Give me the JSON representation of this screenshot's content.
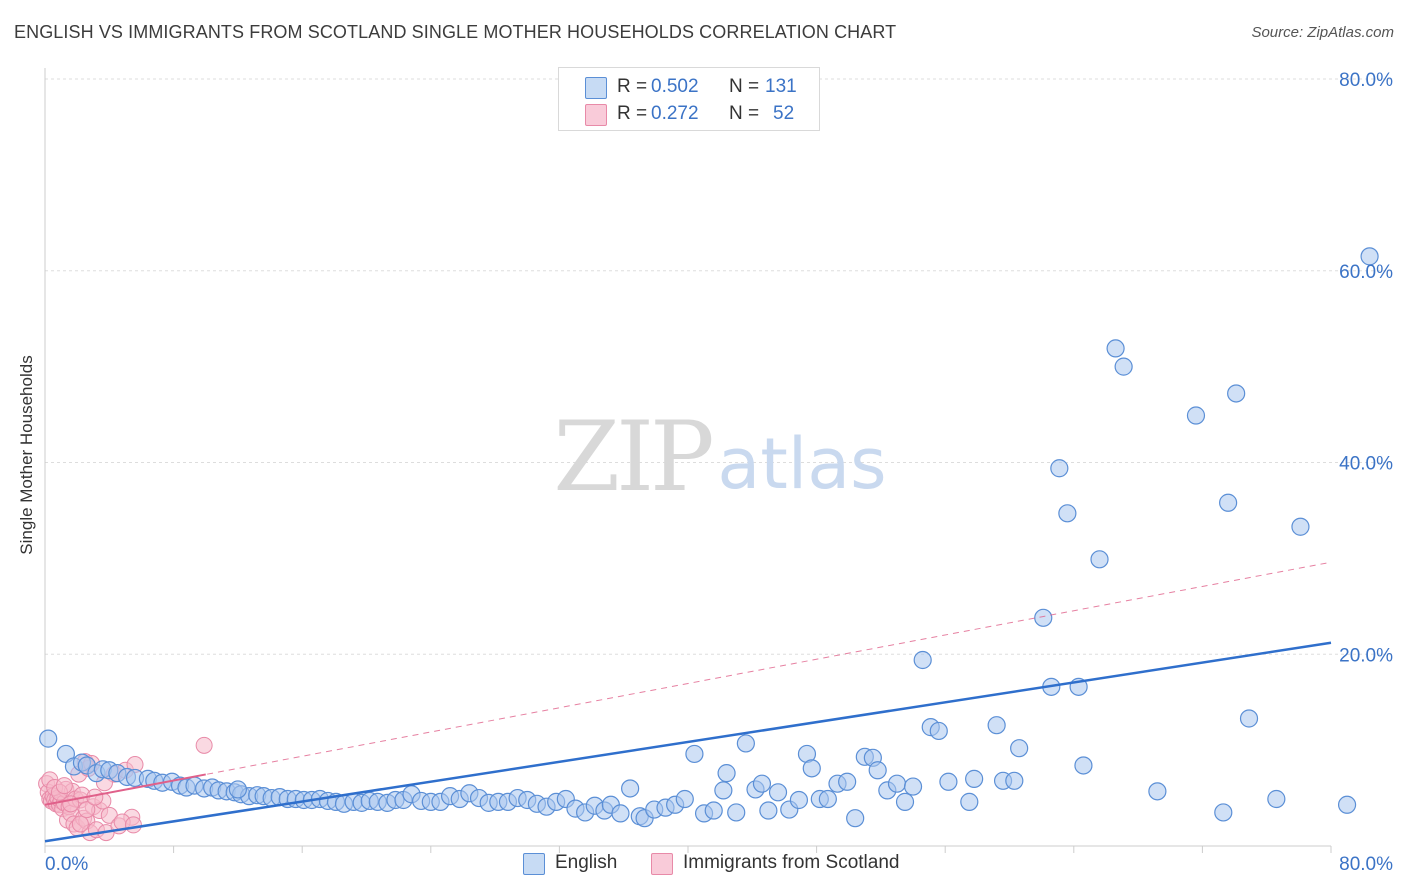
{
  "title": "ENGLISH VS IMMIGRANTS FROM SCOTLAND SINGLE MOTHER HOUSEHOLDS CORRELATION CHART",
  "source": "Source: ZipAtlas.com",
  "watermark": {
    "zip": "ZIP",
    "atlas": "atlas"
  },
  "legend_stats": [
    {
      "r_label": "R =",
      "r_value": "0.502",
      "n_label": "N =",
      "n_value": "131"
    },
    {
      "r_label": "R =",
      "r_value": "0.272",
      "n_label": "N =",
      "n_value": "52"
    }
  ],
  "colors": {
    "english_fill": "#a9c7ee",
    "english_stroke": "#5b8fd6",
    "english_line": "#2f6fcc",
    "scot_fill": "#f6b9cb",
    "scot_stroke": "#e88aa8",
    "scot_line": "#e0608a",
    "grid": "#dddddd",
    "tick_label": "#3b73c6"
  },
  "chart_data": {
    "type": "scatter",
    "title": "ENGLISH VS IMMIGRANTS FROM SCOTLAND SINGLE MOTHER HOUSEHOLDS CORRELATION CHART",
    "xlabel": "",
    "ylabel": "Single Mother Households",
    "xlim": [
      0,
      80
    ],
    "ylim": [
      0,
      80
    ],
    "x_tick_labels": [
      "0.0%",
      "80.0%"
    ],
    "y_ticks": [
      20,
      40,
      60,
      80
    ],
    "y_tick_labels": [
      "20.0%",
      "40.0%",
      "60.0%",
      "80.0%"
    ],
    "grid": true,
    "series": [
      {
        "name": "English",
        "R": 0.502,
        "N": 131,
        "trendline": {
          "x": [
            0,
            80
          ],
          "y": [
            0.5,
            21.2
          ],
          "style": "solid"
        },
        "points": [
          [
            0.2,
            11.2
          ],
          [
            1.3,
            9.6
          ],
          [
            1.8,
            8.3
          ],
          [
            2.3,
            8.7
          ],
          [
            2.6,
            8.4
          ],
          [
            3.2,
            7.6
          ],
          [
            3.6,
            8.0
          ],
          [
            4.0,
            7.9
          ],
          [
            4.5,
            7.6
          ],
          [
            5.1,
            7.2
          ],
          [
            5.6,
            7.1
          ],
          [
            6.4,
            7.0
          ],
          [
            6.8,
            6.8
          ],
          [
            7.3,
            6.6
          ],
          [
            7.9,
            6.7
          ],
          [
            8.4,
            6.3
          ],
          [
            8.8,
            6.1
          ],
          [
            9.3,
            6.3
          ],
          [
            9.9,
            6.0
          ],
          [
            10.4,
            6.1
          ],
          [
            10.8,
            5.8
          ],
          [
            11.3,
            5.7
          ],
          [
            11.8,
            5.6
          ],
          [
            12.2,
            5.4
          ],
          [
            12.7,
            5.2
          ],
          [
            13.2,
            5.3
          ],
          [
            13.6,
            5.2
          ],
          [
            14.1,
            5.0
          ],
          [
            14.6,
            5.1
          ],
          [
            15.1,
            4.9
          ],
          [
            15.6,
            4.9
          ],
          [
            16.1,
            4.8
          ],
          [
            16.6,
            4.8
          ],
          [
            17.1,
            4.9
          ],
          [
            17.6,
            4.7
          ],
          [
            18.1,
            4.6
          ],
          [
            18.6,
            4.4
          ],
          [
            19.2,
            4.6
          ],
          [
            19.7,
            4.5
          ],
          [
            20.2,
            4.7
          ],
          [
            20.7,
            4.6
          ],
          [
            21.3,
            4.5
          ],
          [
            21.8,
            4.8
          ],
          [
            22.3,
            4.8
          ],
          [
            22.8,
            5.4
          ],
          [
            23.4,
            4.7
          ],
          [
            24.0,
            4.6
          ],
          [
            24.6,
            4.6
          ],
          [
            25.2,
            5.2
          ],
          [
            25.8,
            4.9
          ],
          [
            26.4,
            5.5
          ],
          [
            27.0,
            5.0
          ],
          [
            27.6,
            4.5
          ],
          [
            28.2,
            4.6
          ],
          [
            28.8,
            4.6
          ],
          [
            29.4,
            5.0
          ],
          [
            30.0,
            4.8
          ],
          [
            30.6,
            4.4
          ],
          [
            31.2,
            4.1
          ],
          [
            31.8,
            4.6
          ],
          [
            32.4,
            4.9
          ],
          [
            33.0,
            3.9
          ],
          [
            33.6,
            3.5
          ],
          [
            34.2,
            4.2
          ],
          [
            34.8,
            3.7
          ],
          [
            35.2,
            4.3
          ],
          [
            35.8,
            3.4
          ],
          [
            36.4,
            6.0
          ],
          [
            37.0,
            3.1
          ],
          [
            37.3,
            2.9
          ],
          [
            37.9,
            3.8
          ],
          [
            38.6,
            4.0
          ],
          [
            39.2,
            4.3
          ],
          [
            39.8,
            4.9
          ],
          [
            40.4,
            9.6
          ],
          [
            41.0,
            3.4
          ],
          [
            41.6,
            3.7
          ],
          [
            42.2,
            5.8
          ],
          [
            42.4,
            7.6
          ],
          [
            43.0,
            3.5
          ],
          [
            43.6,
            10.7
          ],
          [
            44.2,
            5.9
          ],
          [
            44.6,
            6.5
          ],
          [
            45.0,
            3.7
          ],
          [
            45.6,
            5.6
          ],
          [
            46.3,
            3.8
          ],
          [
            46.9,
            4.8
          ],
          [
            47.4,
            9.6
          ],
          [
            47.7,
            8.1
          ],
          [
            48.2,
            4.9
          ],
          [
            48.7,
            4.9
          ],
          [
            49.3,
            6.5
          ],
          [
            49.9,
            6.7
          ],
          [
            50.4,
            2.9
          ],
          [
            51.0,
            9.3
          ],
          [
            51.5,
            9.2
          ],
          [
            51.8,
            7.9
          ],
          [
            52.4,
            5.8
          ],
          [
            53.0,
            6.5
          ],
          [
            53.5,
            4.6
          ],
          [
            54.0,
            6.2
          ],
          [
            54.6,
            19.4
          ],
          [
            55.1,
            12.4
          ],
          [
            55.6,
            12.0
          ],
          [
            56.2,
            6.7
          ],
          [
            57.5,
            4.6
          ],
          [
            57.8,
            7.0
          ],
          [
            59.2,
            12.6
          ],
          [
            59.6,
            6.8
          ],
          [
            60.3,
            6.8
          ],
          [
            60.6,
            10.2
          ],
          [
            62.1,
            23.8
          ],
          [
            62.6,
            16.6
          ],
          [
            63.1,
            39.4
          ],
          [
            63.6,
            34.7
          ],
          [
            64.3,
            16.6
          ],
          [
            64.6,
            8.4
          ],
          [
            65.6,
            29.9
          ],
          [
            66.6,
            51.9
          ],
          [
            67.1,
            50.0
          ],
          [
            69.2,
            5.7
          ],
          [
            71.6,
            44.9
          ],
          [
            73.3,
            3.5
          ],
          [
            73.6,
            35.8
          ],
          [
            74.1,
            47.2
          ],
          [
            74.9,
            13.3
          ],
          [
            76.6,
            4.9
          ],
          [
            78.1,
            33.3
          ],
          [
            81.0,
            4.3
          ],
          [
            82.4,
            61.5
          ],
          [
            12.0,
            5.9
          ]
        ]
      },
      {
        "name": "Immigrants from Scotland",
        "R": 0.272,
        "N": 52,
        "trendline": {
          "x": [
            0,
            80
          ],
          "y": [
            4.3,
            29.6
          ],
          "style": "dashed",
          "solid_segment_x": [
            0,
            10
          ]
        },
        "points": [
          [
            0.1,
            6.5
          ],
          [
            0.2,
            5.6
          ],
          [
            0.3,
            4.9
          ],
          [
            0.4,
            4.7
          ],
          [
            0.5,
            5.2
          ],
          [
            0.6,
            4.8
          ],
          [
            0.7,
            4.4
          ],
          [
            0.8,
            5.0
          ],
          [
            0.9,
            4.3
          ],
          [
            1.0,
            4.7
          ],
          [
            1.1,
            3.9
          ],
          [
            1.2,
            4.5
          ],
          [
            1.3,
            5.9
          ],
          [
            1.4,
            2.7
          ],
          [
            1.5,
            4.1
          ],
          [
            1.6,
            3.4
          ],
          [
            1.7,
            5.7
          ],
          [
            1.8,
            2.3
          ],
          [
            1.9,
            4.9
          ],
          [
            2.0,
            1.9
          ],
          [
            2.1,
            7.5
          ],
          [
            2.2,
            4.8
          ],
          [
            2.3,
            5.3
          ],
          [
            2.4,
            2.9
          ],
          [
            2.5,
            8.8
          ],
          [
            2.6,
            2.6
          ],
          [
            2.7,
            8.1
          ],
          [
            2.8,
            1.4
          ],
          [
            2.9,
            8.6
          ],
          [
            3.0,
            4.1
          ],
          [
            3.2,
            1.7
          ],
          [
            3.4,
            3.7
          ],
          [
            3.6,
            4.7
          ],
          [
            3.8,
            1.4
          ],
          [
            4.0,
            3.2
          ],
          [
            4.3,
            7.5
          ],
          [
            4.6,
            2.1
          ],
          [
            5.0,
            7.9
          ],
          [
            5.4,
            3.0
          ],
          [
            5.6,
            8.5
          ],
          [
            9.9,
            10.5
          ],
          [
            0.3,
            6.9
          ],
          [
            0.6,
            6.1
          ],
          [
            0.9,
            5.6
          ],
          [
            1.2,
            6.3
          ],
          [
            1.6,
            4.4
          ],
          [
            2.2,
            2.3
          ],
          [
            2.6,
            3.8
          ],
          [
            3.1,
            5.1
          ],
          [
            3.7,
            6.6
          ],
          [
            4.8,
            2.5
          ],
          [
            5.5,
            2.2
          ]
        ]
      }
    ]
  }
}
